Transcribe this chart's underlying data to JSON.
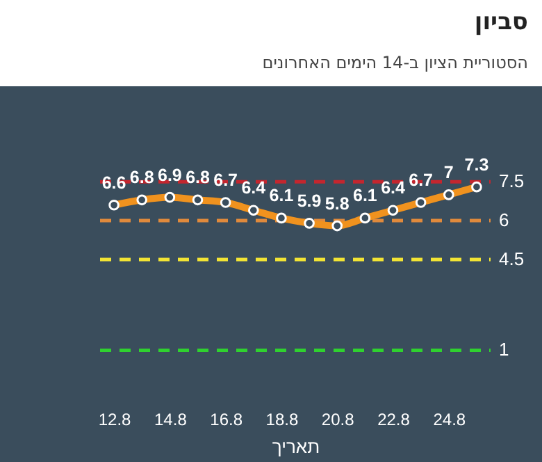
{
  "chart_data": {
    "type": "line",
    "title": "סביון",
    "subtitle": "הסטוריית הציון ב-14 הימים האחרונים",
    "xlabel": "תאריך",
    "categories": [
      "12.8",
      null,
      "14.8",
      null,
      "16.8",
      null,
      "18.8",
      null,
      "20.8",
      null,
      "22.8",
      null,
      "24.8",
      null
    ],
    "series": [
      {
        "color": "#f0921e",
        "values": [
          6.6,
          6.8,
          6.9,
          6.8,
          6.7,
          6.4,
          6.1,
          5.9,
          5.8,
          6.1,
          6.4,
          6.7,
          7,
          7.3
        ]
      }
    ],
    "tick_labels": "x",
    "data_labels": true,
    "marker": "circle",
    "line_style": "solid",
    "ref_lines": [
      {
        "axis": "y",
        "value": 7.5,
        "label": "7.5",
        "color": "#c4262e",
        "line_style": "dashed"
      },
      {
        "axis": "y",
        "value": 6,
        "label": "6",
        "color": "#e08a3c",
        "line_style": "dashed"
      },
      {
        "axis": "y",
        "value": 4.5,
        "label": "4.5",
        "color": "#f2e434",
        "line_style": "dashed"
      },
      {
        "axis": "y",
        "value": 1,
        "label": "1",
        "color": "#2fd12f",
        "line_style": "dashed"
      }
    ]
  }
}
